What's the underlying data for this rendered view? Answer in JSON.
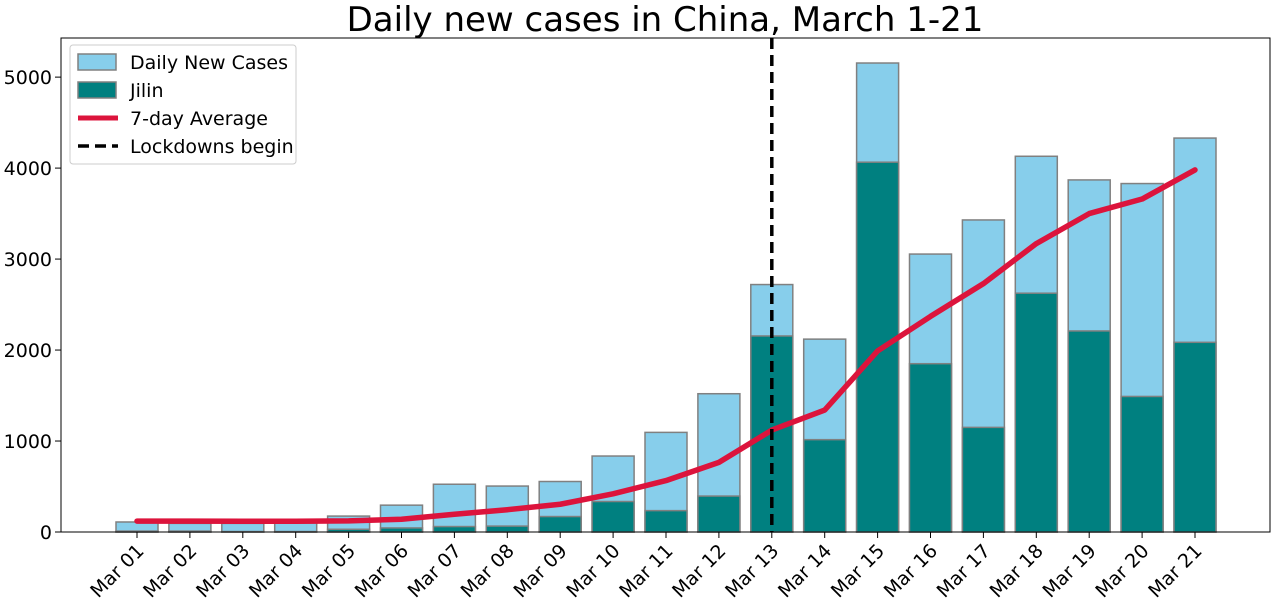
{
  "chart_data": {
    "type": "bar",
    "title": "Daily new cases in China, March 1-21",
    "xlabel": "",
    "ylabel": "",
    "categories": [
      "Mar 01",
      "Mar 02",
      "Mar 03",
      "Mar 04",
      "Mar 05",
      "Mar 06",
      "Mar 07",
      "Mar 08",
      "Mar 09",
      "Mar 10",
      "Mar 11",
      "Mar 12",
      "Mar 13",
      "Mar 14",
      "Mar 15",
      "Mar 16",
      "Mar 17",
      "Mar 18",
      "Mar 19",
      "Mar 20",
      "Mar 21"
    ],
    "series": [
      {
        "name": "Daily New Cases",
        "kind": "bar",
        "color": "#87ceeb",
        "values": [
          110,
          95,
          95,
          100,
          175,
          295,
          525,
          505,
          555,
          835,
          1095,
          1520,
          2720,
          2120,
          5155,
          3055,
          3430,
          4130,
          3870,
          3830,
          4330
        ]
      },
      {
        "name": "Jilin",
        "kind": "bar",
        "color": "#008080",
        "values": [
          10,
          10,
          5,
          5,
          30,
          45,
          60,
          65,
          170,
          335,
          235,
          395,
          2155,
          1015,
          4065,
          1850,
          1150,
          2625,
          2210,
          1490,
          2085
        ]
      },
      {
        "name": "7-day Average",
        "kind": "line",
        "color": "#dc143c",
        "values": [
          120,
          120,
          118,
          118,
          122,
          140,
          195,
          245,
          305,
          420,
          565,
          765,
          1120,
          1340,
          1990,
          2370,
          2730,
          3170,
          3500,
          3660,
          3980
        ]
      }
    ],
    "vline": {
      "name": "Lockdowns begin",
      "x": "Mar 13",
      "style": "dashed",
      "color": "#000000"
    },
    "ylim": [
      0,
      5430
    ],
    "yticks": [
      0,
      1000,
      2000,
      3000,
      4000,
      5000
    ],
    "legend_placement": "top-left",
    "grid": false,
    "bar_edge_color": "#808080"
  }
}
